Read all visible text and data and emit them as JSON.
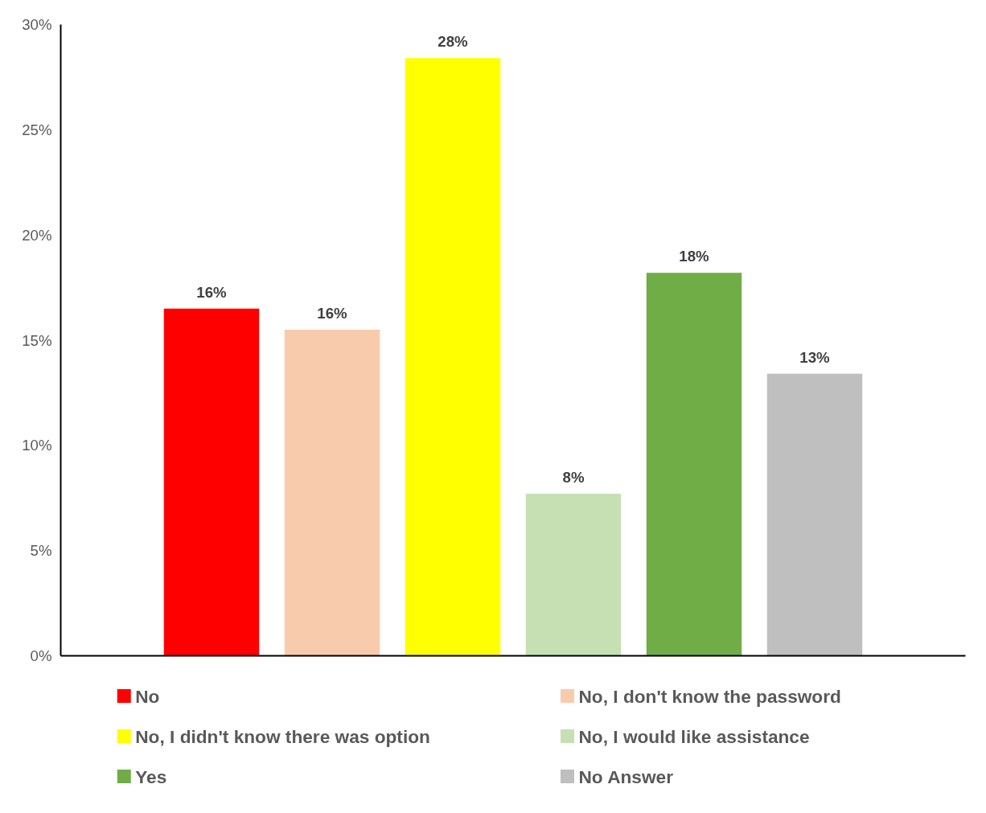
{
  "chart_data": {
    "type": "bar",
    "categories": [
      null
    ],
    "series": [
      {
        "name": "No",
        "color": "#ff0000",
        "values": [
          16.5
        ],
        "value_labels": [
          "16%"
        ]
      },
      {
        "name": "No, I don't know the password",
        "color": "#f8cbad",
        "values": [
          15.5
        ],
        "value_labels": [
          "16%"
        ]
      },
      {
        "name": "No, I didn't know there was option",
        "color": "#ffff00",
        "values": [
          28.4
        ],
        "value_labels": [
          "28%"
        ]
      },
      {
        "name": "No, I would like assistance",
        "color": "#c6e0b4",
        "values": [
          7.7
        ],
        "value_labels": [
          "8%"
        ]
      },
      {
        "name": "Yes",
        "color": "#70ad47",
        "values": [
          18.2
        ],
        "value_labels": [
          "18%"
        ]
      },
      {
        "name": "No Answer",
        "color": "#bfbfbf",
        "values": [
          13.4
        ],
        "value_labels": [
          "13%"
        ]
      }
    ],
    "ylim": [
      0,
      30
    ],
    "yticks": [
      {
        "value": 0,
        "label": "0%"
      },
      {
        "value": 5,
        "label": "5%"
      },
      {
        "value": 10,
        "label": "10%"
      },
      {
        "value": 15,
        "label": "15%"
      },
      {
        "value": 20,
        "label": "20%"
      },
      {
        "value": 25,
        "label": "25%"
      },
      {
        "value": 30,
        "label": "30%"
      }
    ],
    "grid": false,
    "legend": "bottom"
  }
}
